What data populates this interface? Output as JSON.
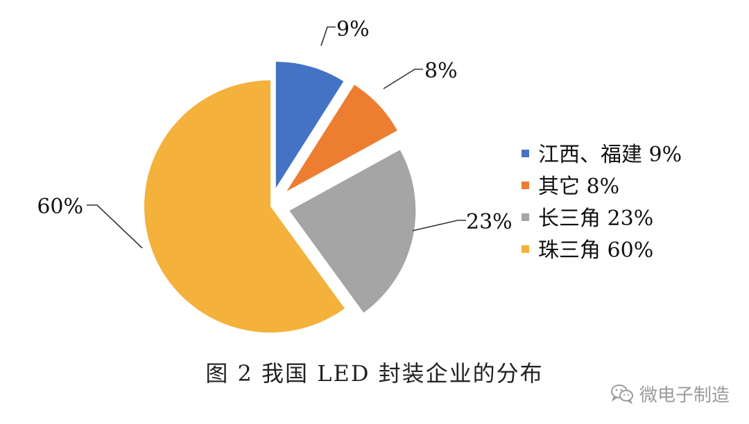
{
  "chart_data": {
    "type": "pie",
    "title": "",
    "slices": [
      {
        "label": "江西、福建",
        "value": 9,
        "data_label": "9%",
        "legend": "江西、福建 9%",
        "color": "#4472C4"
      },
      {
        "label": "其它",
        "value": 8,
        "data_label": "8%",
        "legend": "其它 8%",
        "color": "#ED7D31"
      },
      {
        "label": "长三角",
        "value": 23,
        "data_label": "23%",
        "legend": "长三角 23%",
        "color": "#A5A5A5"
      },
      {
        "label": "珠三角",
        "value": 60,
        "data_label": "60%",
        "legend": "珠三角 60%",
        "color": "#F4B13B"
      }
    ],
    "exploded": true,
    "legend_position": "right"
  },
  "caption": "图 2  我国 LED 封装企业的分布",
  "watermark": {
    "text": "微电子制造",
    "icon": "wechat-icon"
  }
}
